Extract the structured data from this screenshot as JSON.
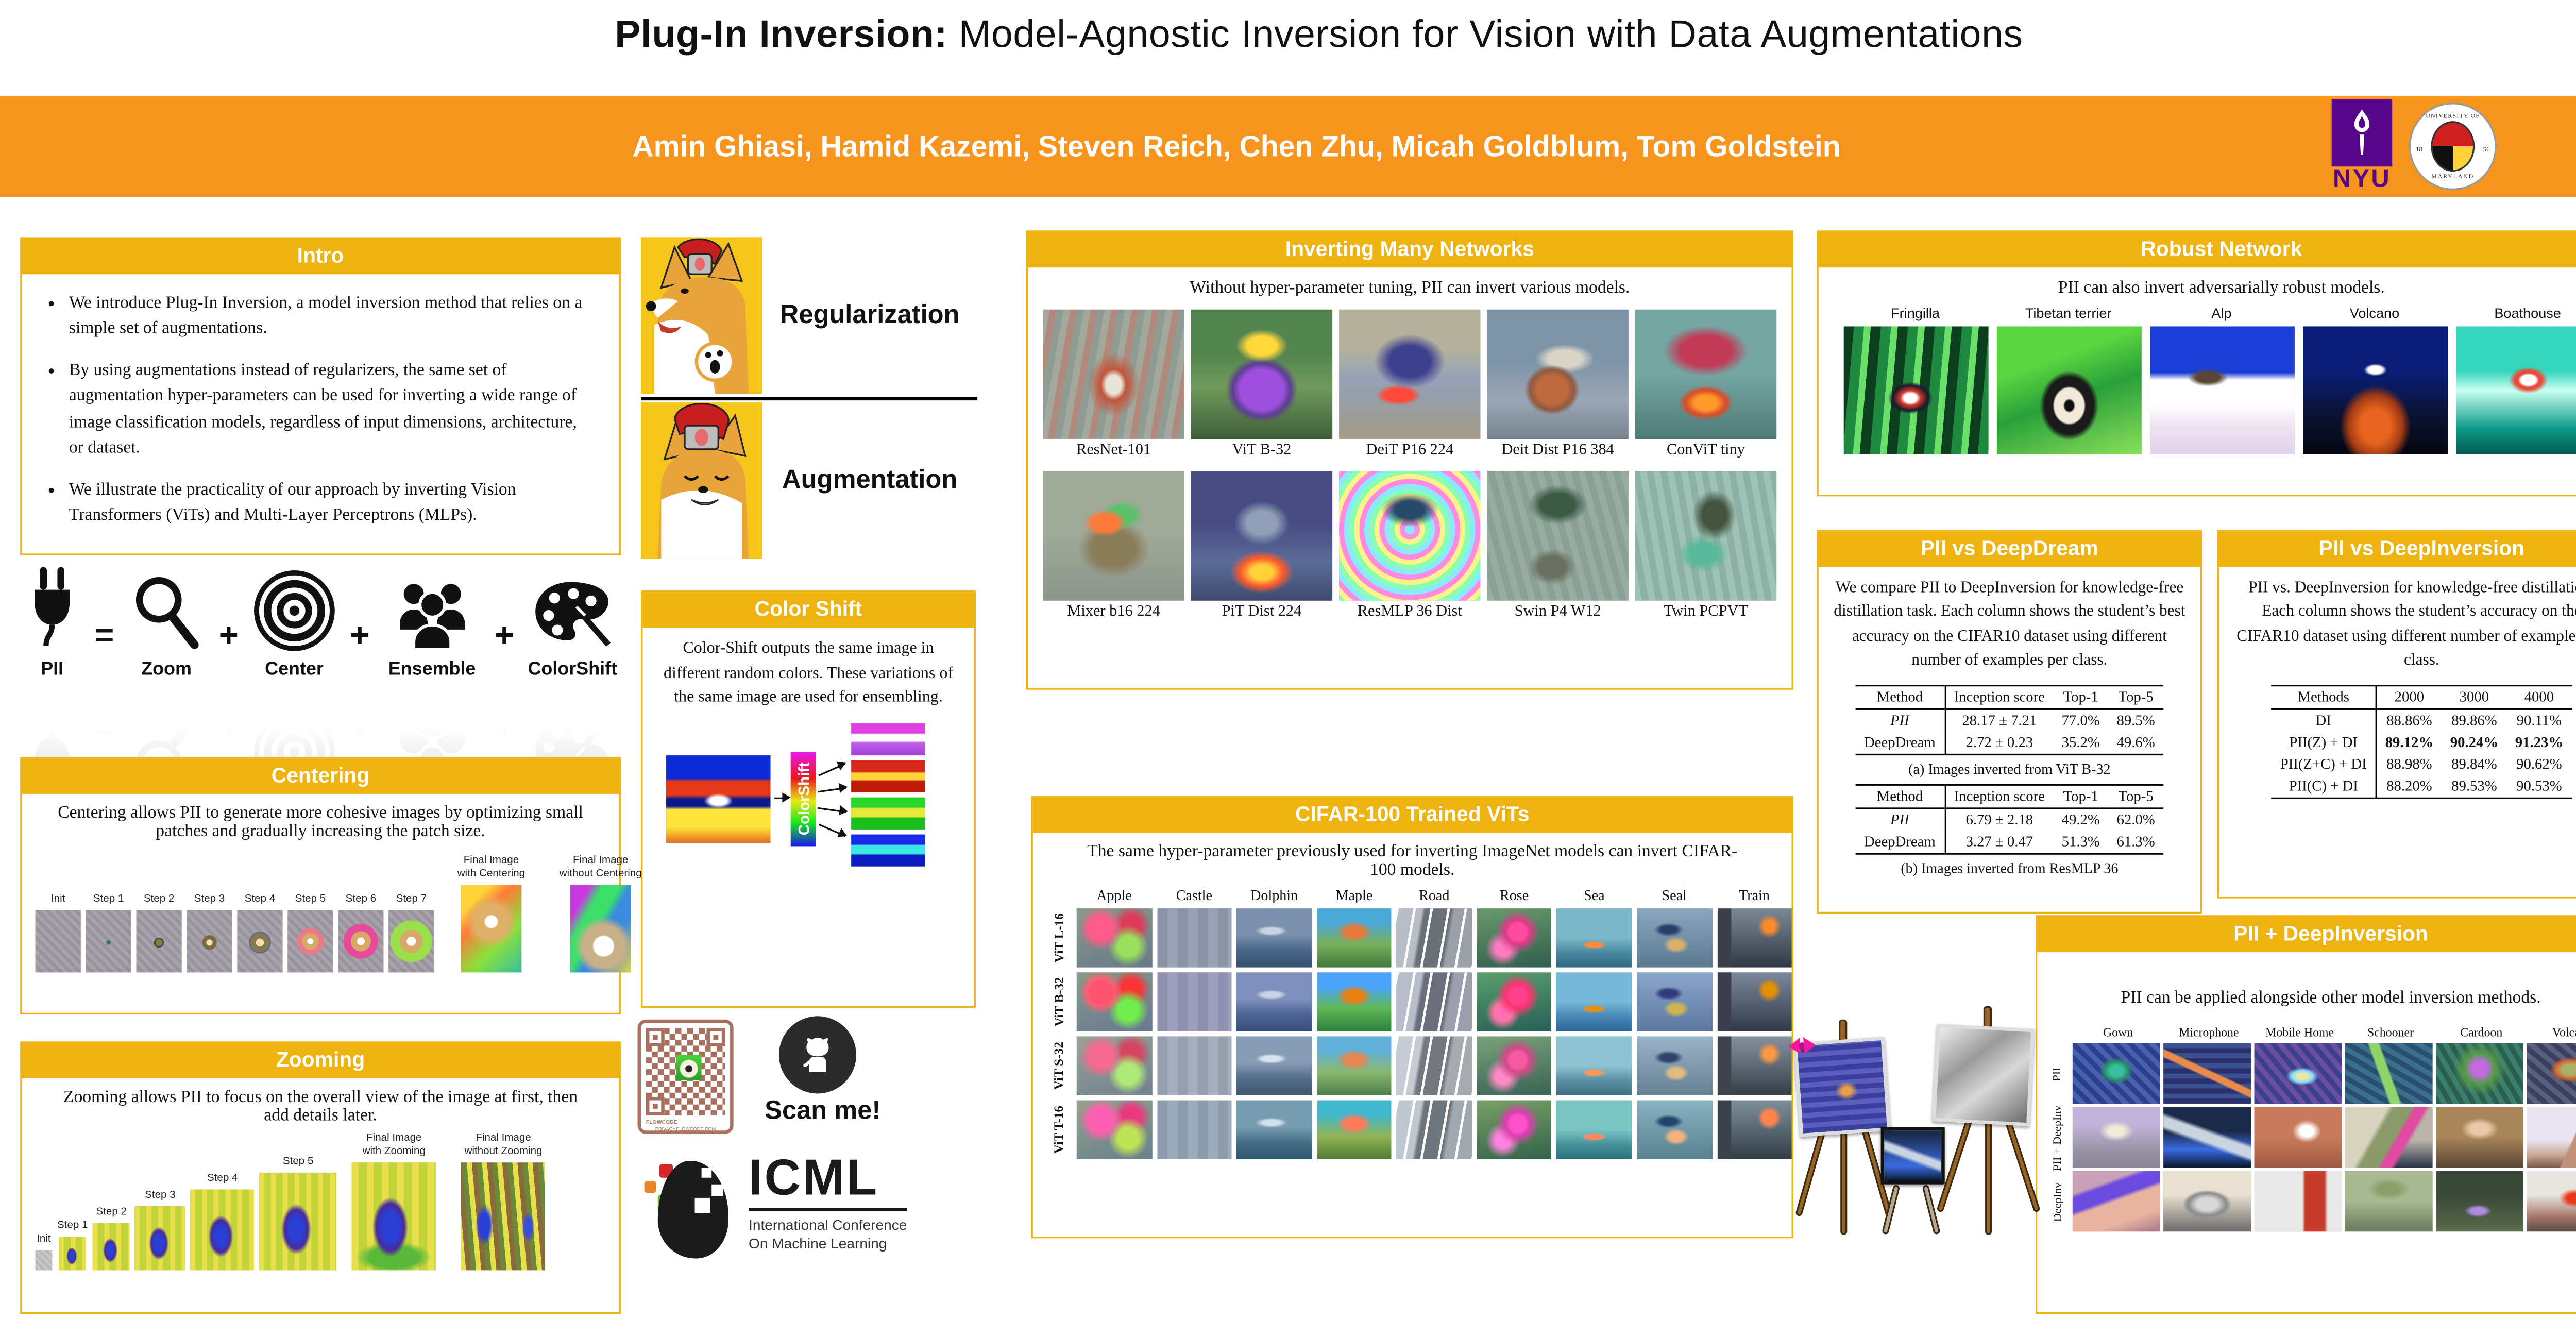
{
  "colors": {
    "banner": "#F7941D",
    "gold": "#EEB211",
    "nyu_purple": "#57068C",
    "qr_brown": "#A9705F"
  },
  "title": {
    "bold": "Plug-In Inversion:",
    "rest": " Model-Agnostic Inversion for Vision with Data Augmentations"
  },
  "banner": {
    "authors": "Amin Ghiasi, Hamid Kazemi, Steven Reich, Chen Zhu, Micah Goldblum, Tom Goldstein",
    "nyu_label": "NYU",
    "umd_top": "UNIVERSITY OF",
    "umd_bottom": "MARYLAND",
    "umd_left": "18",
    "umd_right": "56"
  },
  "intro": {
    "header": "Intro",
    "bullets": [
      "We introduce Plug-In Inversion, a model inversion method that relies on a simple set of augmentations.",
      "By using augmentations instead of regularizers, the same set of augmentation hyper-parameters can be used for inverting a wide range of image classification models, regardless of input dimensions, architecture, or dataset.",
      "We illustrate the practicality of our approach by inverting Vision Transformers (ViTs) and Multi-Layer Perceptrons (MLPs)."
    ]
  },
  "equation": {
    "items": [
      {
        "kind": "term",
        "icon": "plug-icon",
        "label": "PII"
      },
      {
        "kind": "op",
        "label": "="
      },
      {
        "kind": "term",
        "icon": "magnifier-icon",
        "label": "Zoom"
      },
      {
        "kind": "op",
        "label": "+"
      },
      {
        "kind": "term",
        "icon": "target-icon",
        "label": "Center"
      },
      {
        "kind": "op",
        "label": "+"
      },
      {
        "kind": "term",
        "icon": "people-icon",
        "label": "Ensemble"
      },
      {
        "kind": "op",
        "label": "+"
      },
      {
        "kind": "term",
        "icon": "palette-icon",
        "label": "ColorShift"
      }
    ]
  },
  "meme": {
    "top_label": "Regularization",
    "bottom_label": "Augmentation"
  },
  "centering": {
    "header": "Centering",
    "caption": "Centering allows PII to generate more cohesive images by optimizing small patches and gradually increasing the patch size.",
    "steps": [
      {
        "label": "Init",
        "art": "repeating-linear-gradient(45deg,#a8a2ab 0 2px,#99939d 2px 4px)"
      },
      {
        "label": "Step 1",
        "art": "radial-gradient(circle at 50% 52%,#3a6a72 0 5%,rgba(0,0,0,0) 6%),repeating-linear-gradient(45deg,#a8a2ab 0 2px,#99939d 2px 4px)"
      },
      {
        "label": "Step 2",
        "art": "radial-gradient(circle at 50% 52%,#8a7a4a 0 9%,#4a4232 9% 12%,rgba(0,0,0,0) 13%),repeating-linear-gradient(45deg,#a8a2ab 0 2px,#99939d 2px 4px)"
      },
      {
        "label": "Step 3",
        "art": "radial-gradient(circle at 50% 52%,#f0e0b0 0 8%,#7a6a42 8% 18%,rgba(0,0,0,0) 19%),repeating-linear-gradient(45deg,#a8a2ab 0 2px,#99939d 2px 4px)"
      },
      {
        "label": "Step 4",
        "art": "radial-gradient(circle at 50% 52%,#f0e0b0 0 10%,#8a7852 10% 24%,#5a6a8a 24% 27%,rgba(0,0,0,0) 28%),repeating-linear-gradient(45deg,#a8a2ab 0 2px,#99939d 2px 4px)"
      },
      {
        "label": "Step 5",
        "art": "radial-gradient(circle at 50% 50%,#fff 0 8%,#d8a868 8% 22%,#e87a8a 22% 34%,rgba(0,0,0,0) 36%),repeating-linear-gradient(45deg,#a8a2ab 0 2px,#99939d 2px 4px)"
      },
      {
        "label": "Step 6",
        "art": "radial-gradient(circle at 50% 50%,#fff 0 10%,#d8a868 10% 26%,#e84a9a 26% 44%,rgba(0,0,0,0) 46%),repeating-linear-gradient(45deg,#a8a2ab 0 2px,#99939d 2px 4px)"
      },
      {
        "label": "Step 7",
        "art": "radial-gradient(circle at 50% 50%,#fff 0 12%,#d8a868 12% 30%,#9ae04a 30% 52%,rgba(0,0,0,0) 56%),repeating-linear-gradient(45deg,#a8a2ab 0 2px,#99939d 2px 4px)"
      }
    ],
    "finals": [
      {
        "label": "Final Image\nwith Centering",
        "art": "radial-gradient(circle at 50% 42%,#fff 0 10%,#e0b068 12% 28%,rgba(0,0,0,0) 45%),linear-gradient(135deg,#ffd23a 0 20%,#ff7a3a 35%,#8ae03a 65%,#3ac0a0)"
      },
      {
        "label": "Final Image\nwithout Centering",
        "art": "radial-gradient(circle at 55% 70%,#fff 0 14%,#c8b088 16% 30%,rgba(0,0,0,0) 42%),linear-gradient(120deg,#c83ae0 0 18%,#3ae06a 30% 45%,#3a8ae0 55% 70%,#e8d43a)"
      }
    ]
  },
  "zooming": {
    "header": "Zooming",
    "caption": "Zooming allows PII to focus on the overall view of the image at first, then add details later.",
    "steps": [
      {
        "label": "Init",
        "art": "repeating-linear-gradient(45deg,#d8a8c0 0 1px,#a8c0d8 1px 2px,#c0d8a8 2px 3px)"
      },
      {
        "label": "Step 1",
        "art": "radial-gradient(ellipse 30% 40% at 48% 58%,#2a3fd6 0 30%,#4a2a9a 50%,rgba(0,0,0,0) 65%),repeating-linear-gradient(90deg,#e8e04a 0 3px,#c2d43a 3px 7px)"
      },
      {
        "label": "Step 2",
        "art": "radial-gradient(ellipse 30% 40% at 48% 58%,#2a3fd6 0 30%,#4a2a9a 50%,rgba(0,0,0,0) 65%),repeating-linear-gradient(90deg,#e8e04a 0 3px,#c2d43a 3px 7px)"
      },
      {
        "label": "Step 3",
        "art": "radial-gradient(ellipse 30% 40% at 48% 58%,#2a3fd6 0 30%,#4a2a9a 50%,rgba(0,0,0,0) 65%),repeating-linear-gradient(90deg,#e8e04a 0 3px,#c2d43a 3px 7px)"
      },
      {
        "label": "Step 4",
        "art": "radial-gradient(ellipse 30% 40% at 48% 58%,#2a3fd6 0 30%,#4a2a9a 50%,rgba(0,0,0,0) 65%),repeating-linear-gradient(90deg,#e8e04a 0 3px,#c2d43a 3px 7px)"
      },
      {
        "label": "Step 5",
        "art": "radial-gradient(ellipse 30% 40% at 48% 58%,#2a3fd6 0 30%,#4a2a9a 50%,rgba(0,0,0,0) 65%),repeating-linear-gradient(90deg,#e8e04a 0 3px,#c2d43a 3px 7px)"
      }
    ],
    "finals": [
      {
        "label": "Final Image\nwith Zooming",
        "art": "radial-gradient(ellipse 32% 42% at 46% 60%,#2a3fd6 0 32%,#4a2a9a 52%,rgba(0,0,0,0) 66%),radial-gradient(ellipse 60% 20% at 50% 88%,#5ab83a 0 50%,rgba(0,0,0,0) 75%),repeating-linear-gradient(90deg,#e8e04a 0 4px,#c2d43a 4px 9px)"
      },
      {
        "label": "Final Image\nwithout Zooming",
        "art": "radial-gradient(ellipse 18% 32% at 28% 58%,#2a3fd6 0 35%,rgba(0,0,0,0) 60%),radial-gradient(ellipse 14% 26% at 80% 60%,#3a4fd6 0 30%,rgba(0,0,0,0) 55%),repeating-linear-gradient(85deg,#e8e04a 0 3px,#8a6a3a 3px 6px,#6a8a3a 6px 9px)"
      }
    ]
  },
  "colorshift": {
    "header": "Color Shift",
    "caption": "Color-Shift outputs the same image in different random colors. These variations of the same image are used for ensembling.",
    "bar_label": "ColorShift",
    "source_art": "radial-gradient(ellipse 20% 12% at 50% 52%,#fff 0 40%,rgba(0,0,0,0) 70%),linear-gradient(180deg,#0a2ad6 0 26%,#e83a1a 30% 45%,#0a1a8e 50% 58%,#ffe43a 62% 82%,#e86a1a)",
    "variants": [
      "linear-gradient(180deg,#e040e0 0 30%,#fff 35% 55%,#c060e8 60%,#a040d8)",
      "linear-gradient(180deg,#d82a1a 0 35%,#ffd23a 40% 60%,#c01a0a 65%)",
      "linear-gradient(180deg,#2ad82a 0 30%,#e8e83a 35% 60%,#1ac01a 65%)",
      "linear-gradient(180deg,#1a2ae8 0 30%,#3ae8e8 35% 60%,#0a1ac0 65%)"
    ]
  },
  "qr": {
    "brand": "FLOWCODE",
    "privacy": "PRIVACY.FLOWCODE.COM"
  },
  "github": {
    "scan_label": "Scan me!"
  },
  "icml": {
    "name": "ICML",
    "line1": "International Conference",
    "line2": "On Machine Learning"
  },
  "many_networks": {
    "header": "Inverting Many Networks",
    "caption": "Without hyper-parameter tuning, PII can invert various models.",
    "rows": [
      [
        {
          "label": "ResNet-101",
          "art": "radial-gradient(ellipse 30% 40% at 50% 58%,#e8e4da 0 18%,#c2553a 30%,rgba(0,0,0,0) 62%),repeating-linear-gradient(100deg,#a3a89c 0 4px,#b08b7d 4px 8px,#8e9c94 8px 12px)"
        },
        {
          "label": "ViT B-32",
          "art": "radial-gradient(ellipse 26% 18% at 50% 28%,#ffd83a 0 40%,rgba(0,0,0,0) 70%),radial-gradient(ellipse 34% 34% at 50% 62%,#a050e0 0 45%,#5b3f8f 60%,rgba(0,0,0,0) 75%),linear-gradient(180deg,#55854e 0 35%,#6f9a5a 60%,#3f5e3a)"
        },
        {
          "label": "DeiT P16 224",
          "art": "radial-gradient(ellipse 36% 30% at 50% 40%,#3d3f8f 0 40%,rgba(0,0,0,0) 70%),radial-gradient(ellipse 20% 10% at 42% 66%,#ff4a3a 0 50%,rgba(0,0,0,0) 80%),linear-gradient(180deg,#b5b29b 0 30%,#93a0b8 55%,#a39b85)"
        },
        {
          "label": "Deit Dist P16 384",
          "art": "radial-gradient(ellipse 26% 26% at 46% 62%,#c06a3e 0 40%,#8f5a40 60%,rgba(0,0,0,0) 75%),radial-gradient(ellipse 30% 16% at 55% 38%,#d8d4c8 0 40%,rgba(0,0,0,0) 70%),linear-gradient(180deg,#7d94a9 0 40%,#9aa6b5 70%,#78848f)"
        },
        {
          "label": "ConViT tiny",
          "art": "radial-gradient(ellipse 40% 26% at 50% 32%,#c23a56 0 45%,rgba(0,0,0,0) 75%),radial-gradient(ellipse 26% 18% at 50% 72%,#ff9a2a 0 30%,#d84a2a 55%,rgba(0,0,0,0) 75%),linear-gradient(180deg,#74a6a2 0 50%,#4f7a78)"
        }
      ],
      [
        {
          "label": "Mixer b16 224",
          "art": "radial-gradient(ellipse 20% 14% at 44% 40%,#ff7a3a 0 45%,rgba(0,0,0,0) 75%),radial-gradient(ellipse 22% 16% at 56% 34%,#5ac06a 0 40%,rgba(0,0,0,0) 70%),radial-gradient(ellipse 34% 30% at 50% 60%,#8a7d5a 0 45%,rgba(0,0,0,0) 75%),linear-gradient(180deg,#a0a898 0 50%,#8b948c)"
        },
        {
          "label": "PiT Dist 224",
          "art": "radial-gradient(ellipse 30% 22% at 50% 78%,#ffd23a 0 25%,#ff5a2a 50%,rgba(0,0,0,0) 75%),radial-gradient(ellipse 30% 26% at 50% 40%,#8fa0b8 0 35%,rgba(0,0,0,0) 65%),linear-gradient(180deg,#474b82 0 40%,#5a6c9a 70%,#3f4a6e)"
        },
        {
          "label": "ResMLP 36 Dist",
          "art": "radial-gradient(ellipse 34% 22% at 50% 30%,#274a66 0 30%,rgba(0,0,0,0) 60%),repeating-radial-gradient(circle at 50% 45%,#8ae8ff 0 3px,#ff8ae0 3px 6px,#fff28a 6px 9px,#8affb0 9px 12px)"
        },
        {
          "label": "Swin P4 W12",
          "art": "radial-gradient(ellipse 30% 22% at 50% 26%,#3c5b46 0 40%,rgba(0,0,0,0) 70%),radial-gradient(ellipse 24% 20% at 46% 74%,#6a6f62 0 40%,rgba(0,0,0,0) 70%),repeating-linear-gradient(75deg,#97ac9e 0 4px,#88a096 4px 8px)"
        },
        {
          "label": "Twin PCPVT",
          "art": "radial-gradient(ellipse 24% 30% at 56% 34%,#44543f 0 35%,rgba(0,0,0,0) 65%),radial-gradient(ellipse 30% 24% at 48% 64%,#57b89a 0 30%,rgba(0,0,0,0) 60%),repeating-linear-gradient(80deg,#9ec2b4 0 4px,#8cb0a4 4px 8px)"
        }
      ]
    ]
  },
  "cifar": {
    "header": "CIFAR-100 Trained ViTs",
    "caption": "The same hyper-parameter previously used for inverting ImageNet models can invert CIFAR-100 models.",
    "columns": [
      {
        "label": "Apple",
        "art": "radial-gradient(circle at 32% 34%,#ff5a8a 0 18%,rgba(0,0,0,0) 34%),radial-gradient(circle at 68% 64%,#9ae05a 0 16%,rgba(0,0,0,0) 32%),radial-gradient(circle at 72% 28%,#e03a5a 0 14%,rgba(0,0,0,0) 28%),linear-gradient(160deg,#8a9a88,#66788a)"
      },
      {
        "label": "Castle",
        "art": "repeating-linear-gradient(90deg,#8a93a8 0 6px,#9aa2b5 6px 12px),linear-gradient(180deg,#9aa5b8 0 60%,#6a7588)"
      },
      {
        "label": "Dolphin",
        "art": "radial-gradient(ellipse 30% 12% at 46% 38%,#c8d4e0 0 40%,rgba(0,0,0,0) 70%),linear-gradient(180deg,#7a92b0 0 45%,#4a6888 70%,#35506e)"
      },
      {
        "label": "Maple",
        "art": "radial-gradient(ellipse 40% 30% at 50% 40%,#e87a3a 0 30%,rgba(0,0,0,0) 60%),linear-gradient(180deg,#4aa8d8 0 25%,#7ab05a 60%,#3f7a3a)"
      },
      {
        "label": "Road",
        "art": "repeating-linear-gradient(100deg,#fff 0 1.5px,rgba(0,0,0,0) 1.5px 10px),linear-gradient(100deg,#b8bec8 0 30%,#6a7078 34% 64%,#9aa0a8 68%)"
      },
      {
        "label": "Rose",
        "art": "radial-gradient(circle at 55% 40%,#ff4aa0 0 16%,#e03a8a 22%,rgba(0,0,0,0) 40%),radial-gradient(circle at 35% 68%,#ff7ac0 0 12%,rgba(0,0,0,0) 28%),linear-gradient(170deg,#6a9a6a,#2f5e4f)"
      },
      {
        "label": "Sea",
        "art": "radial-gradient(ellipse 24% 10% at 50% 62%,#ff8a3a 0 40%,rgba(0,0,0,0) 70%),linear-gradient(180deg,#7ab8c8 0 50%,#4a88a0 75%,#2f6880)"
      },
      {
        "label": "Seal",
        "art": "radial-gradient(ellipse 26% 22% at 52% 62%,#d8b06a 0 35%,rgba(0,0,0,0) 65%),radial-gradient(ellipse 30% 18% at 42% 36%,#2a3f6e 0 35%,rgba(0,0,0,0) 65%),linear-gradient(180deg,#8aa8c0,#5a7890)"
      },
      {
        "label": "Train",
        "art": "radial-gradient(circle at 70% 30%,#ff8a2a 0 8%,rgba(0,0,0,0) 18%),linear-gradient(90deg,#3a3f4a 0 18%,rgba(0,0,0,0) 19%),linear-gradient(180deg,#7a8896,#48525e 70%,#2f3842)"
      }
    ],
    "rows": [
      "ViT L-16",
      "ViT B-32",
      "ViT S-32",
      "ViT T-16"
    ]
  },
  "robust": {
    "header": "Robust Network",
    "caption": "PII can also invert adversarially robust models.",
    "items": [
      {
        "label": "Fringilla",
        "art": "radial-gradient(ellipse 22% 18% at 46% 56%,#fff 0 20%,#d23a2a 32%,#1a1a2a 55%,rgba(0,0,0,0) 70%),repeating-linear-gradient(95deg,#0c3f1e 0 6px,#1f8a3f 6px 12px,#6ae06a 12px 16px)"
      },
      {
        "label": "Tibetan terrier",
        "art": "radial-gradient(ellipse 30% 40% at 50% 62%,#101010 0 10%,#f2ead8 14% 34%,#1a1a1a 38% 56%,rgba(0,0,0,0) 68%),linear-gradient(160deg,#5ad43f 0 30%,#2aa03a 55%,#8ae05a)"
      },
      {
        "label": "Alp",
        "art": "radial-gradient(ellipse 20% 10% at 40% 40%,#5a4632 0 40%,rgba(0,0,0,0) 70%),linear-gradient(180deg,#1b3fd6 0 36%,#ffffff 42% 62%,#efe2f2 78%,#dfd2e8)"
      },
      {
        "label": "Volcano",
        "art": "radial-gradient(ellipse 10% 6% at 50% 34%,#fff 0 50%,rgba(0,0,0,0) 80%),radial-gradient(ellipse 34% 44% at 50% 78%,#e8641e 0 30%,#a03a14 55%,rgba(0,0,0,0) 72%),linear-gradient(180deg,#0a1e78 0 35%,#0a1230 70%,#05070f)"
      },
      {
        "label": "Boathouse",
        "art": "radial-gradient(ellipse 26% 20% at 50% 42%,#ffffff 0 20%,#e84a3a 28% 36%,rgba(0,0,0,0) 52%),linear-gradient(180deg,#35d6bd 0 35%,#c8fff0 50%,#0a9a88 80%,#065a50)"
      }
    ]
  },
  "deepdream": {
    "header": "PII vs DeepDream",
    "caption": "We compare PII to DeepInversion for knowledge-free distillation task. Each column shows the student’s best accuracy on the CIFAR10 dataset using different number of examples per class.",
    "col_headers": [
      "Method",
      "Inception score",
      "Top-1",
      "Top-5"
    ],
    "tables": [
      {
        "rows": [
          [
            "PII",
            "28.17 ± 7.21",
            "77.0%",
            "89.5%"
          ],
          [
            "DeepDream",
            "2.72 ± 0.23",
            "35.2%",
            "49.6%"
          ]
        ],
        "caption": "(a) Images inverted from ViT B-32"
      },
      {
        "rows": [
          [
            "PII",
            "6.79 ± 2.18",
            "49.2%",
            "62.0%"
          ],
          [
            "DeepDream",
            "3.27 ± 0.47",
            "51.3%",
            "61.3%"
          ]
        ],
        "caption": "(b) Images inverted from ResMLP 36"
      }
    ]
  },
  "deepinversion": {
    "header": "PII vs DeepInversion",
    "caption": "PII vs. DeepInversion for knowledge-free distillation. Each column shows the student’s accuracy on the CIFAR10 dataset using different number of examples per class.",
    "col_headers": [
      "Methods",
      "2000",
      "3000",
      "4000"
    ],
    "rows": [
      [
        "DI",
        "88.86%",
        "89.86%",
        "90.11%"
      ],
      [
        "PII(Z) + DI",
        "89.12%",
        "90.24%",
        "91.23%"
      ],
      [
        "PII(Z+C) + DI",
        "88.98%",
        "89.84%",
        "90.62%"
      ],
      [
        "PII(C) + DI",
        "88.20%",
        "89.53%",
        "90.53%"
      ]
    ],
    "bold_row": 1
  },
  "pii_plus_di": {
    "header": "PII + DeepInversion",
    "caption": "PII can be applied alongside other model inversion methods.",
    "columns": [
      "Gown",
      "Microphone",
      "Mobile Home",
      "Schooner",
      "Cardoon",
      "Volcano"
    ],
    "rows": [
      {
        "label": "PII",
        "arts": [
          "radial-gradient(ellipse 30% 34% at 50% 46%,#3ac0a0 0 25%,#2a8f6a 45%,rgba(0,0,0,0) 65%),repeating-linear-gradient(45deg,#2a3f8f 0 3px,#4a5fae 3px 6px)",
          "linear-gradient(25deg,rgba(0,0,0,0) 45%,#e88a4a 47% 53%,rgba(0,0,0,0) 55%),repeating-linear-gradient(0deg,#2a2f6e 0 3px,#3a4f8e 3px 6px)",
          "radial-gradient(ellipse 30% 24% at 55% 55%,#e8e8a0 0 20%,#8ae0ff 40%,rgba(0,0,0,0) 62%),repeating-linear-gradient(50deg,#3a3f8f 0 3px,#6a4f9e 3px 6px)",
          "linear-gradient(70deg,rgba(0,0,0,0) 40%,#8fd46a 42% 50%,rgba(0,0,0,0) 52%),repeating-linear-gradient(30deg,#2a4f6e 0 3px,#3a6f8e 3px 6px)",
          "radial-gradient(circle at 50% 42%,#c06ae0 0 14%,#5a9a4a 26%,rgba(0,0,0,0) 48%),repeating-linear-gradient(60deg,#2a5f4e 0 3px,#3a7f6e 3px 6px)",
          "radial-gradient(ellipse 34% 30% at 50% 44%,#a8b06a 0 30%,#d8642a 50%,rgba(0,0,0,0) 68%),repeating-linear-gradient(40deg,#3a3f5e 0 3px,#5a5f7e 3px 6px)"
        ]
      },
      {
        "label": "PII + DeepInv",
        "arts": [
          "radial-gradient(ellipse 36% 30% at 50% 40%,#f0ead8 0 25%,rgba(0,0,0,0) 55%),linear-gradient(180deg,#c0b4d8 0 30%,#9a94a8 70%,#8a8498)",
          "linear-gradient(20deg,rgba(0,0,0,0) 40%,#c8d4e0 45% 55%,rgba(0,0,0,0) 60%),linear-gradient(180deg,#1a2a4a 0 40%,#3a6ae0 70%,#0a1a30)",
          "radial-gradient(ellipse 30% 34% at 60% 40%,#fff 0 25%,rgba(0,0,0,0) 55%),linear-gradient(180deg,#c87a5a 0 50%,#a05a42)",
          "linear-gradient(120deg,#d8d4c0 0 35%,#8a9a6a 40% 55%,#e04aa0 58% 66%,rgba(0,0,0,0) 70%),linear-gradient(180deg,#b8b4a8 0 55%,#2a3448)",
          "radial-gradient(ellipse 36% 30% at 50% 36%,#e8c8a8 0 30%,rgba(0,0,0,0) 60%),linear-gradient(180deg,#a8865a 0 50%,#5a4632)",
          "linear-gradient(115deg,rgba(0,0,0,0) 52%,#c09078 54%),linear-gradient(180deg,#e8e4f0 0 55%,#c8a490 80%,#7a5a4a)"
        ]
      },
      {
        "label": "DeepInv",
        "arts": [
          "linear-gradient(160deg,#c8a0b8 0 25%,#6a4ae0 30% 45%,#e8b4a0 50% 75%,#a8788a)",
          "radial-gradient(ellipse 40% 34% at 50% 55%,#d8d8d8 0 30%,#8a8a8a 55%,rgba(0,0,0,0) 70%),linear-gradient(180deg,#e8e0d0 0 40%,#6a6a6a)",
          "linear-gradient(90deg,#e8e8e8 0 55%,#c83a2a 58% 80%,#e8e8e8 84%),linear-gradient(180deg,#f0f0f0 0 60%,#b8b8b8)",
          "radial-gradient(ellipse 40% 30% at 50% 30%,#8aa06a 0 30%,rgba(0,0,0,0) 60%),linear-gradient(180deg,#a8b890 0 50%,#68785a)",
          "radial-gradient(ellipse 24% 16% at 48% 66%,#b08ae0 0 35%,rgba(0,0,0,0) 65%),linear-gradient(180deg,#3a4a3a 0 40%,#5a6a4a)",
          "radial-gradient(ellipse 30% 26% at 55% 45%,#e83a1a 0 30%,rgba(0,0,0,0) 60%),linear-gradient(180deg,#e8e4e0 0 40%,#a8786a 75%,#5a4a42)"
        ]
      }
    ]
  }
}
